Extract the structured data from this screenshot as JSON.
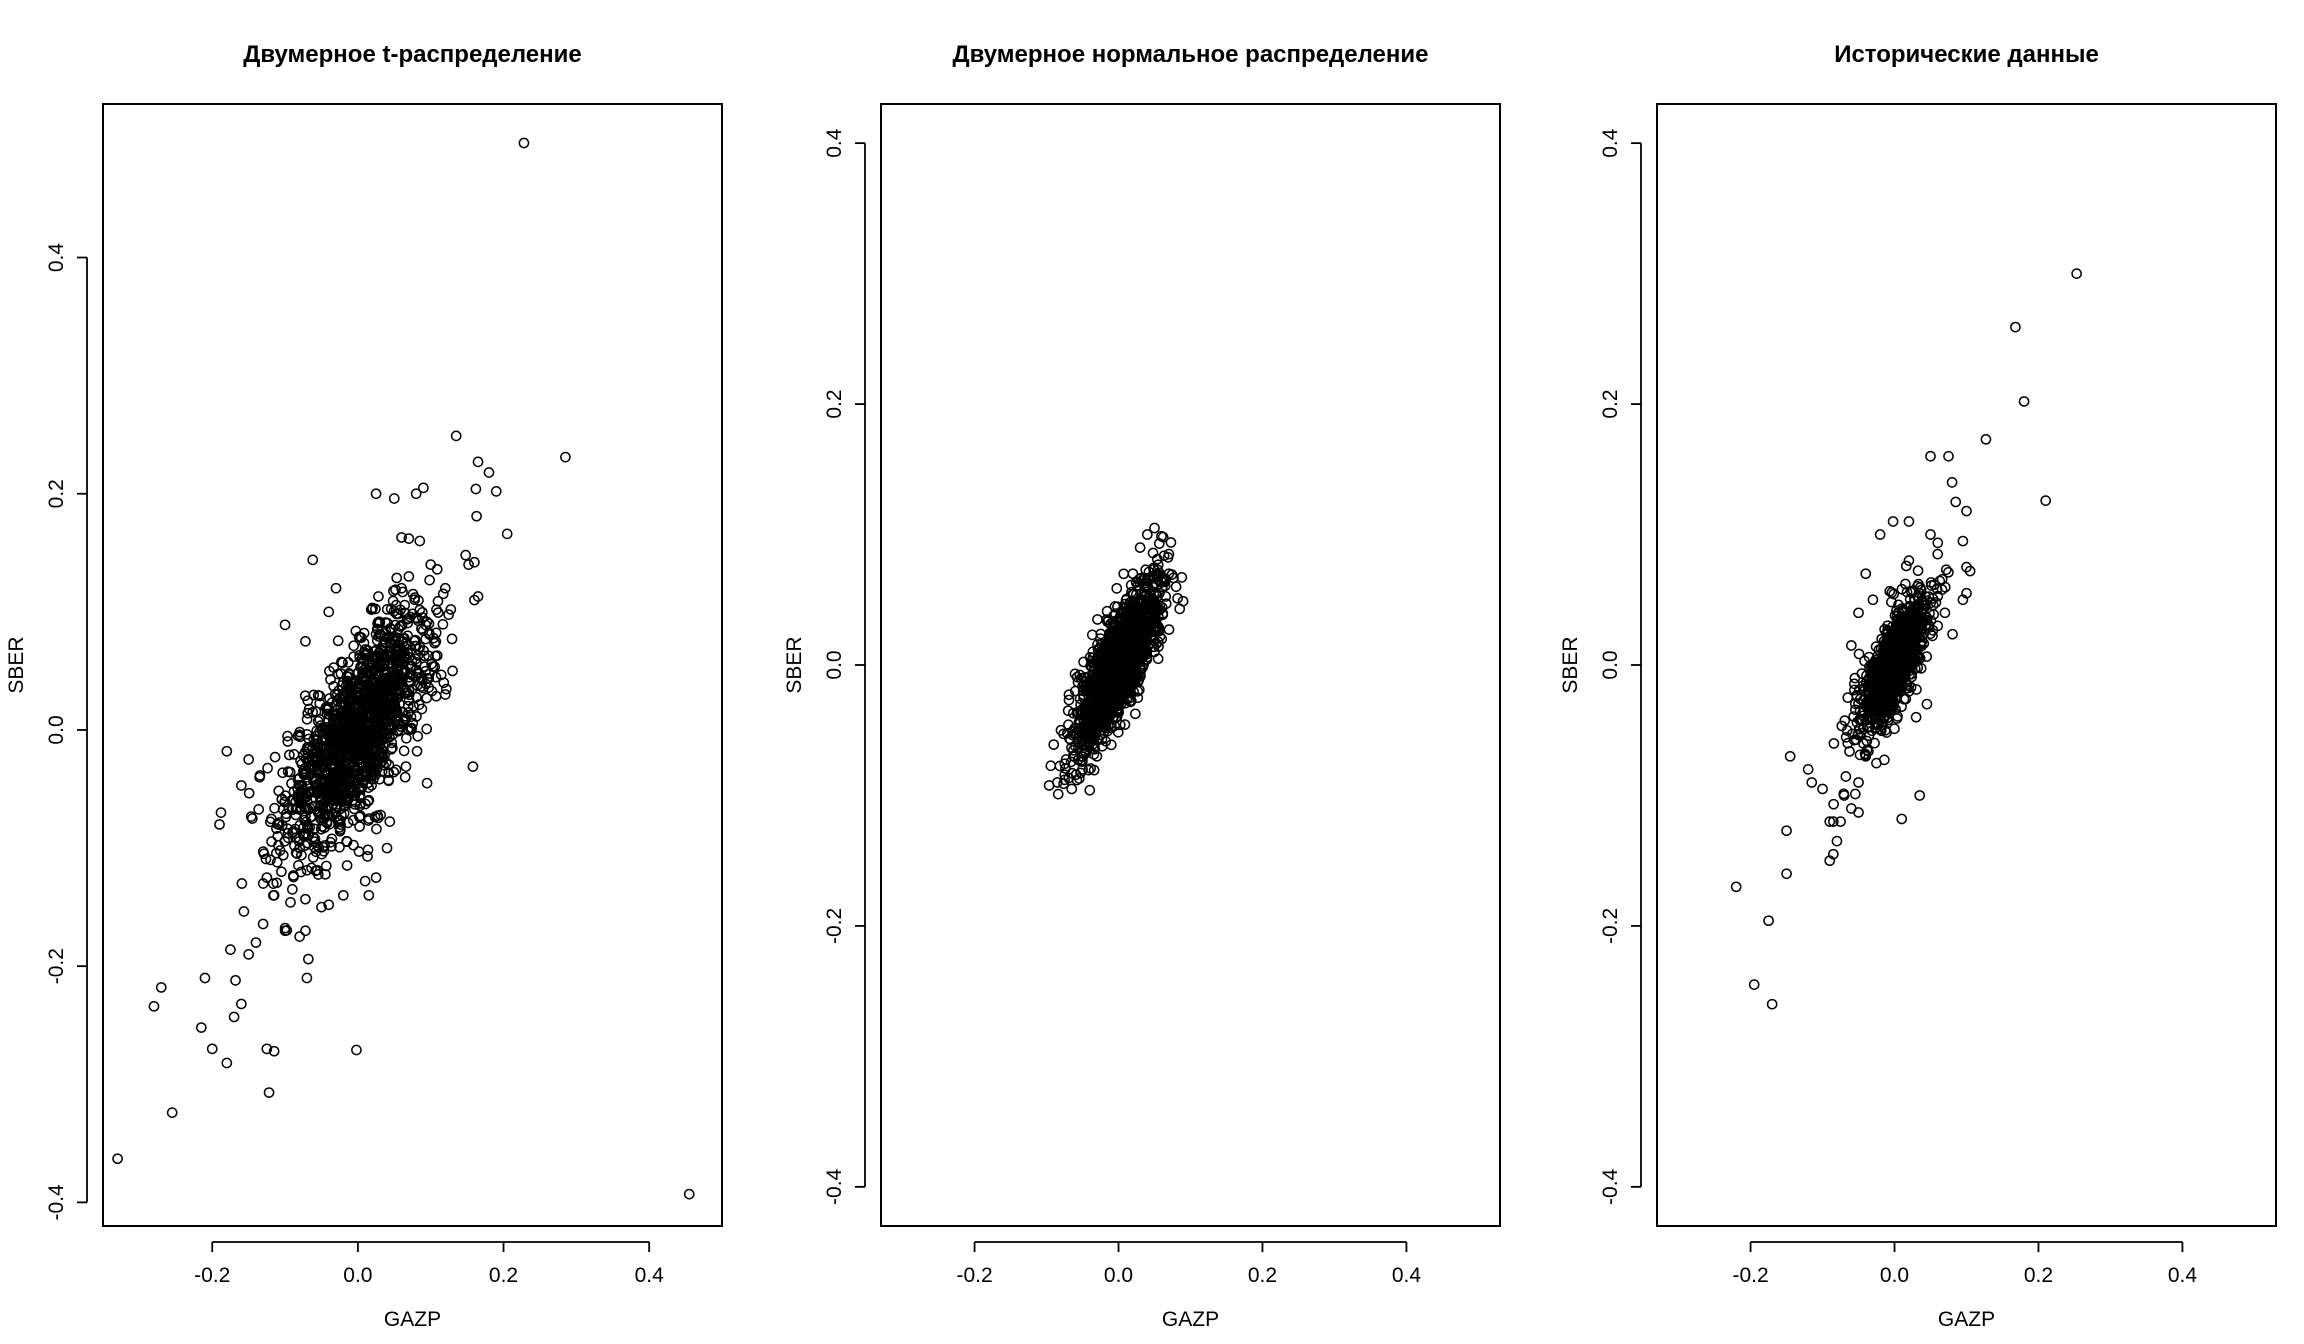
{
  "chart_data": [
    {
      "type": "scatter",
      "title": "Двумерное t-распределение",
      "xlabel": "GAZP",
      "ylabel": "SBER",
      "xlim": [
        -0.35,
        0.5
      ],
      "ylim": [
        -0.42,
        0.53
      ],
      "xticks": [
        -0.2,
        0.0,
        0.2,
        0.4
      ],
      "xtick_labels": [
        "-0.2",
        "0.0",
        "0.2",
        "0.4"
      ],
      "yticks": [
        -0.4,
        -0.2,
        0.0,
        0.2,
        0.4
      ],
      "ytick_labels": [
        "-0.4",
        "-0.2",
        "0.0",
        "0.2",
        "0.4"
      ],
      "grid": false,
      "marker": "open-circle",
      "series": [
        {
          "points": [
            [
              0.228,
              0.497
            ],
            [
              0.285,
              0.231
            ],
            [
              0.135,
              0.249
            ],
            [
              0.165,
              0.227
            ],
            [
              0.18,
              0.218
            ],
            [
              0.19,
              0.202
            ],
            [
              0.162,
              0.204
            ],
            [
              0.205,
              0.166
            ],
            [
              0.163,
              0.181
            ],
            [
              0.148,
              0.148
            ],
            [
              0.16,
              0.142
            ],
            [
              0.165,
              0.113
            ],
            [
              0.16,
              0.11
            ],
            [
              0.098,
              0.082
            ],
            [
              0.152,
              0.14
            ],
            [
              0.12,
              0.12
            ],
            [
              0.085,
              0.16
            ],
            [
              0.07,
              0.162
            ],
            [
              0.08,
              0.2
            ],
            [
              0.09,
              0.205
            ],
            [
              0.025,
              0.2
            ],
            [
              0.05,
              0.196
            ],
            [
              0.06,
              0.163
            ],
            [
              0.11,
              0.109
            ],
            [
              0.13,
              0.05
            ],
            [
              0.118,
              0.04
            ],
            [
              0.095,
              -0.045
            ],
            [
              0.158,
              -0.031
            ],
            [
              0.455,
              -0.393
            ],
            [
              -0.002,
              -0.271
            ],
            [
              -0.062,
              0.144
            ],
            [
              -0.1,
              0.089
            ],
            [
              -0.072,
              0.075
            ],
            [
              -0.33,
              -0.363
            ],
            [
              -0.28,
              -0.234
            ],
            [
              -0.27,
              -0.218
            ],
            [
              -0.255,
              -0.324
            ],
            [
              -0.21,
              -0.21
            ],
            [
              -0.215,
              -0.252
            ],
            [
              -0.2,
              -0.27
            ],
            [
              -0.18,
              -0.282
            ],
            [
              -0.175,
              -0.186
            ],
            [
              -0.17,
              -0.243
            ],
            [
              -0.16,
              -0.232
            ],
            [
              -0.168,
              -0.212
            ],
            [
              -0.15,
              -0.19
            ],
            [
              -0.14,
              -0.18
            ],
            [
              -0.125,
              -0.27
            ],
            [
              -0.115,
              -0.272
            ],
            [
              -0.122,
              -0.307
            ],
            [
              -0.19,
              -0.08
            ],
            [
              -0.188,
              -0.07
            ],
            [
              -0.18,
              -0.018
            ],
            [
              -0.15,
              -0.025
            ],
            [
              -0.16,
              -0.047
            ],
            [
              -0.135,
              -0.04
            ],
            [
              -0.145,
              -0.075
            ],
            [
              -0.13,
              -0.103
            ],
            [
              -0.12,
              -0.11
            ],
            [
              -0.125,
              -0.125
            ],
            [
              -0.13,
              -0.13
            ],
            [
              -0.115,
              -0.14
            ],
            [
              -0.1,
              -0.17
            ],
            [
              -0.08,
              -0.175
            ],
            [
              -0.072,
              -0.17
            ],
            [
              -0.07,
              -0.21
            ],
            [
              -0.068,
              -0.194
            ],
            [
              -0.05,
              -0.15
            ],
            [
              -0.04,
              -0.148
            ],
            [
              -0.02,
              -0.14
            ],
            [
              0.015,
              -0.14
            ],
            [
              0.01,
              -0.128
            ],
            [
              0.025,
              -0.125
            ],
            [
              0.04,
              -0.1
            ],
            [
              0.065,
              -0.04
            ],
            [
              -0.09,
              -0.135
            ],
            [
              -0.105,
              -0.12
            ],
            [
              -0.11,
              -0.09
            ],
            [
              -0.09,
              -0.06
            ],
            [
              -0.08,
              -0.1
            ],
            [
              0.12,
              0.03
            ],
            [
              0.1,
              0.14
            ],
            [
              0.07,
              0.13
            ],
            [
              0.06,
              0.12
            ],
            [
              -0.03,
              0.12
            ],
            [
              -0.04,
              0.1
            ]
          ]
        }
      ],
      "bulk": [
        {
          "center": [
            0.0,
            0.0
          ],
          "sd_x": 0.05,
          "sd_y": 0.05,
          "rho": 0.72,
          "n": 1500
        }
      ]
    },
    {
      "type": "scatter",
      "title": "Двумерное нормальное распределение",
      "xlabel": "GAZP",
      "ylabel": "SBER",
      "xlim": [
        -0.33,
        0.53
      ],
      "ylim": [
        -0.43,
        0.43
      ],
      "xticks": [
        -0.2,
        0.0,
        0.2,
        0.4
      ],
      "xtick_labels": [
        "-0.2",
        "0.0",
        "0.2",
        "0.4"
      ],
      "yticks": [
        -0.4,
        -0.2,
        0.0,
        0.2,
        0.4
      ],
      "ytick_labels": [
        "-0.4",
        "-0.2",
        "0.0",
        "0.2",
        "0.4"
      ],
      "grid": false,
      "marker": "open-circle",
      "series": [
        {
          "points": [
            [
              0.05,
              0.105
            ],
            [
              0.04,
              0.1
            ],
            [
              0.062,
              0.098
            ],
            [
              0.07,
              0.085
            ],
            [
              0.08,
              0.06
            ],
            [
              0.085,
              0.043
            ],
            [
              0.06,
              0.02
            ],
            [
              -0.085,
              -0.09
            ],
            [
              -0.075,
              -0.088
            ],
            [
              -0.065,
              -0.095
            ],
            [
              -0.04,
              -0.096
            ],
            [
              -0.09,
              -0.061
            ],
            [
              -0.08,
              -0.05
            ],
            [
              -0.07,
              -0.035
            ],
            [
              -0.06,
              -0.02
            ],
            [
              0.03,
              0.09
            ],
            [
              0.02,
              0.07
            ],
            [
              -0.03,
              -0.07
            ],
            [
              -0.05,
              -0.08
            ],
            [
              0.07,
              0.07
            ]
          ]
        }
      ],
      "bulk": [
        {
          "center": [
            0.0,
            0.0
          ],
          "sd_x": 0.028,
          "sd_y": 0.03,
          "rho": 0.78,
          "n": 1600
        }
      ]
    },
    {
      "type": "scatter",
      "title": "Исторические данные",
      "xlabel": "GAZP",
      "ylabel": "SBER",
      "xlim": [
        -0.33,
        0.53
      ],
      "ylim": [
        -0.43,
        0.43
      ],
      "xticks": [
        -0.2,
        0.0,
        0.2,
        0.4
      ],
      "xtick_labels": [
        "-0.2",
        "0.0",
        "0.2",
        "0.4"
      ],
      "yticks": [
        -0.4,
        -0.2,
        0.0,
        0.2,
        0.4
      ],
      "ytick_labels": [
        "-0.4",
        "-0.2",
        "0.0",
        "0.2",
        "0.4"
      ],
      "grid": false,
      "marker": "open-circle",
      "series": [
        {
          "points": [
            [
              0.253,
              0.3
            ],
            [
              0.168,
              0.259
            ],
            [
              0.18,
              0.202
            ],
            [
              0.127,
              0.173
            ],
            [
              0.21,
              0.126
            ],
            [
              0.075,
              0.16
            ],
            [
              0.05,
              0.16
            ],
            [
              0.08,
              0.14
            ],
            [
              0.1,
              0.118
            ],
            [
              0.085,
              0.125
            ],
            [
              0.095,
              0.095
            ],
            [
              0.1,
              0.075
            ],
            [
              0.105,
              0.072
            ],
            [
              0.1,
              0.055
            ],
            [
              0.095,
              0.05
            ],
            [
              0.06,
              0.085
            ],
            [
              0.02,
              0.11
            ],
            [
              0.05,
              0.1
            ],
            [
              -0.002,
              0.11
            ],
            [
              -0.02,
              0.1
            ],
            [
              -0.05,
              0.04
            ],
            [
              -0.06,
              0.015
            ],
            [
              -0.055,
              -0.01
            ],
            [
              -0.065,
              -0.025
            ],
            [
              -0.22,
              -0.17
            ],
            [
              -0.195,
              -0.245
            ],
            [
              -0.17,
              -0.26
            ],
            [
              -0.175,
              -0.196
            ],
            [
              -0.15,
              -0.16
            ],
            [
              -0.15,
              -0.127
            ],
            [
              -0.145,
              -0.07
            ],
            [
              -0.12,
              -0.08
            ],
            [
              -0.115,
              -0.09
            ],
            [
              -0.1,
              -0.095
            ],
            [
              -0.09,
              -0.15
            ],
            [
              -0.085,
              -0.145
            ],
            [
              -0.08,
              -0.135
            ],
            [
              -0.09,
              -0.12
            ],
            [
              -0.085,
              -0.12
            ],
            [
              -0.075,
              -0.12
            ],
            [
              -0.07,
              -0.1
            ],
            [
              -0.06,
              -0.11
            ],
            [
              -0.05,
              -0.113
            ],
            [
              -0.05,
              -0.09
            ],
            [
              0.035,
              -0.1
            ],
            [
              0.01,
              -0.118
            ],
            [
              -0.04,
              -0.07
            ],
            [
              -0.065,
              -0.06
            ],
            [
              0.03,
              -0.04
            ],
            [
              0.045,
              -0.03
            ],
            [
              0.06,
              0.03
            ],
            [
              0.07,
              0.04
            ],
            [
              -0.03,
              0.05
            ],
            [
              -0.04,
              0.07
            ],
            [
              0.02,
              0.08
            ]
          ]
        }
      ],
      "bulk": [
        {
          "center": [
            0.0,
            0.0
          ],
          "sd_x": 0.025,
          "sd_y": 0.028,
          "rho": 0.75,
          "n": 900
        }
      ]
    }
  ]
}
